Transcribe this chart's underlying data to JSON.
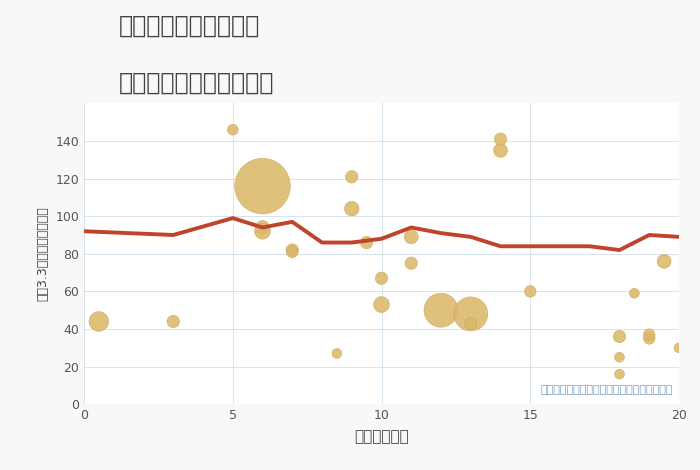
{
  "title_line1": "千葉県成田市水の上の",
  "title_line2": "駅距離別中古戸建て価格",
  "xlabel": "駅距離（分）",
  "ylabel": "坪（3.3㎡）単価（万円）",
  "background_color": "#f8f8f8",
  "plot_background": "#ffffff",
  "scatter_color": "#dbb96a",
  "scatter_edge_color": "#c9a355",
  "line_color": "#c0432b",
  "annotation": "円の大きさは、取引のあった物件面積を示す",
  "annotation_color": "#7799bb",
  "xlim": [
    0,
    20
  ],
  "ylim": [
    0,
    160
  ],
  "xticks": [
    0,
    5,
    10,
    15,
    20
  ],
  "yticks": [
    0,
    20,
    40,
    60,
    80,
    100,
    120,
    140
  ],
  "scatter_x": [
    0.5,
    3,
    5,
    6,
    6,
    6,
    7,
    7,
    8.5,
    9,
    9,
    9.5,
    10,
    10,
    11,
    11,
    12,
    13,
    13,
    14,
    14,
    15,
    18,
    18,
    18,
    18.5,
    19,
    19,
    19.5,
    20
  ],
  "scatter_y": [
    44,
    44,
    146,
    116,
    94,
    92,
    82,
    81,
    27,
    121,
    104,
    86,
    67,
    53,
    89,
    75,
    50,
    48,
    43,
    135,
    141,
    60,
    16,
    25,
    36,
    59,
    35,
    37,
    76,
    30
  ],
  "scatter_size": [
    200,
    80,
    60,
    1600,
    100,
    130,
    80,
    70,
    50,
    80,
    110,
    80,
    80,
    130,
    100,
    80,
    600,
    600,
    80,
    100,
    80,
    70,
    50,
    50,
    80,
    50,
    70,
    70,
    100,
    50
  ],
  "line_x": [
    0,
    3,
    5,
    6,
    7,
    8,
    9,
    10,
    11,
    12,
    13,
    14,
    15,
    17,
    18,
    19,
    20
  ],
  "line_y": [
    92,
    90,
    99,
    94,
    97,
    86,
    86,
    88,
    94,
    91,
    89,
    84,
    84,
    84,
    82,
    90,
    89
  ]
}
